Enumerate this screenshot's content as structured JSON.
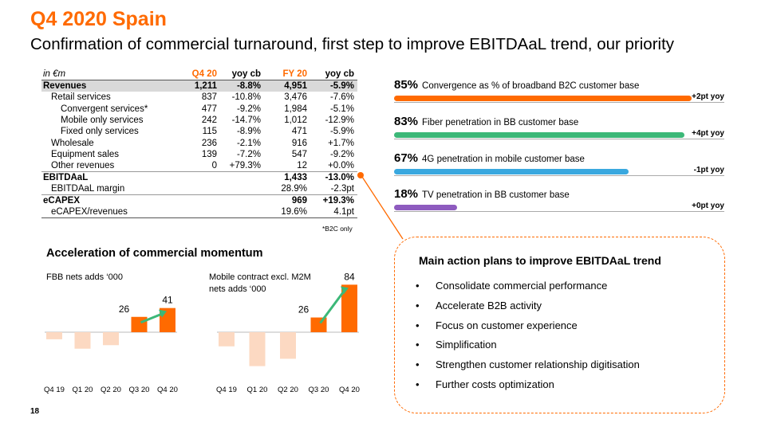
{
  "header": {
    "title": "Q4 2020 Spain",
    "subtitle": "Confirmation of commercial turnaround, first step to improve EBITDAaL trend, our priority"
  },
  "table": {
    "columns": [
      "in €m",
      "Q4 20",
      "yoy cb",
      "FY 20",
      "yoy cb"
    ],
    "rows": [
      {
        "label": "Revenues",
        "q4": "1,211",
        "q4_yoy": "-8.8%",
        "fy": "4,951",
        "fy_yoy": "-5.9%"
      },
      {
        "label": "Retail services",
        "q4": "837",
        "q4_yoy": "-10.8%",
        "fy": "3,476",
        "fy_yoy": "-7.6%"
      },
      {
        "label": "Convergent services*",
        "q4": "477",
        "q4_yoy": "-9.2%",
        "fy": "1,984",
        "fy_yoy": "-5.1%"
      },
      {
        "label": "Mobile only services",
        "q4": "242",
        "q4_yoy": "-14.7%",
        "fy": "1,012",
        "fy_yoy": "-12.9%"
      },
      {
        "label": "Fixed only services",
        "q4": "115",
        "q4_yoy": "-8.9%",
        "fy": "471",
        "fy_yoy": "-5.9%"
      },
      {
        "label": "Wholesale",
        "q4": "236",
        "q4_yoy": "-2.1%",
        "fy": "916",
        "fy_yoy": "+1.7%"
      },
      {
        "label": "Equipment sales",
        "q4": "139",
        "q4_yoy": "-7.2%",
        "fy": "547",
        "fy_yoy": "-9.2%"
      },
      {
        "label": "Other revenues",
        "q4": "0",
        "q4_yoy": "+79.3%",
        "fy": "12",
        "fy_yoy": "+0.0%"
      },
      {
        "label": "EBITDAaL",
        "q4": "",
        "q4_yoy": "",
        "fy": "1,433",
        "fy_yoy": "-13.0%"
      },
      {
        "label": "EBITDAaL margin",
        "q4": "",
        "q4_yoy": "",
        "fy": "28.9%",
        "fy_yoy": "-2.3pt"
      },
      {
        "label": "eCAPEX",
        "q4": "",
        "q4_yoy": "",
        "fy": "969",
        "fy_yoy": "+19.3%"
      },
      {
        "label": "eCAPEX/revenues",
        "q4": "",
        "q4_yoy": "",
        "fy": "19.6%",
        "fy_yoy": "4.1pt"
      }
    ],
    "footnote": "*B2C only"
  },
  "kpis": [
    {
      "pct": "85%",
      "label": "Convergence as % of broadband B2C customer base",
      "yoy": "+2pt yoy",
      "value": 85,
      "color": "#ff6a00"
    },
    {
      "pct": "83%",
      "label": "Fiber penetration in BB customer base",
      "yoy": "+4pt yoy",
      "value": 83,
      "color": "#3cb878"
    },
    {
      "pct": "67%",
      "label": "4G penetration in mobile customer base",
      "yoy": "-1pt yoy",
      "value": 67,
      "color": "#3aa8df"
    },
    {
      "pct": "18%",
      "label": "TV penetration in BB customer base",
      "yoy": "+0pt yoy",
      "value": 18,
      "color": "#8e5bbf"
    }
  ],
  "plan": {
    "title": "Main action plans to improve EBITDAaL trend",
    "items": [
      "Consolidate commercial performance",
      "Accelerate B2B activity",
      "Focus on customer experience",
      "Simplification",
      "Strengthen customer relationship digitisation",
      "Further costs optimization"
    ],
    "bullet": "•"
  },
  "momentum": {
    "title": "Acceleration of commercial momentum"
  },
  "chart_data": [
    {
      "type": "bar",
      "title": "FBB nets adds ‘000",
      "categories": [
        "Q4 19",
        "Q1 20",
        "Q2 20",
        "Q3 20",
        "Q4 20"
      ],
      "values": [
        -12,
        -28,
        -22,
        26,
        41
      ],
      "data_labels": [
        "",
        "",
        "",
        "26",
        "41"
      ],
      "ylim": [
        -50,
        50
      ]
    },
    {
      "type": "bar",
      "title_lines": [
        "Mobile contract excl. M2M",
        "nets adds ‘000"
      ],
      "categories": [
        "Q4 19",
        "Q1 20",
        "Q2 20",
        "Q3 20",
        "Q4 20"
      ],
      "values": [
        -25,
        -60,
        -47,
        26,
        84
      ],
      "data_labels": [
        "",
        "",
        "",
        "26",
        "84"
      ],
      "ylim": [
        -70,
        90
      ]
    }
  ],
  "page_number": "18"
}
